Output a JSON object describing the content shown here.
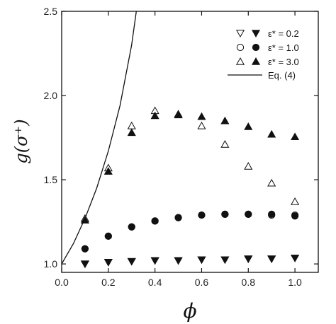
{
  "chart_data": {
    "type": "scatter",
    "xlabel": "ϕ",
    "ylabel": "g(σ⁺)",
    "xlim": [
      0.0,
      1.1
    ],
    "ylim": [
      0.95,
      2.5
    ],
    "x_ticks": [
      "0.0",
      "0.2",
      "0.4",
      "0.6",
      "0.8",
      "1.0"
    ],
    "y_ticks": [
      "1.0",
      "1.5",
      "2.0",
      "2.5"
    ],
    "grid": false,
    "legend_position": "top-right",
    "series": [
      {
        "name": "ε* = 0.2",
        "marker": "triangle-down",
        "x": [
          0.1,
          0.2,
          0.3,
          0.4,
          0.5,
          0.6,
          0.7,
          0.8,
          0.9,
          1.0
        ],
        "open": [
          1.0,
          1.01,
          1.015,
          1.02,
          1.02,
          1.025,
          1.025,
          1.03,
          1.03,
          1.035
        ],
        "filled": [
          1.0,
          1.01,
          1.015,
          1.02,
          1.02,
          1.025,
          1.025,
          1.03,
          1.03,
          1.035
        ]
      },
      {
        "name": "ε* = 1.0",
        "marker": "circle",
        "x": [
          0.1,
          0.2,
          0.3,
          0.4,
          0.5,
          0.6,
          0.7,
          0.8,
          0.9,
          1.0
        ],
        "open": [
          1.09,
          1.165,
          1.22,
          1.255,
          1.275,
          1.29,
          1.295,
          1.295,
          1.29,
          1.29
        ],
        "filled": [
          1.09,
          1.165,
          1.22,
          1.255,
          1.275,
          1.29,
          1.295,
          1.295,
          1.295,
          1.285
        ]
      },
      {
        "name": "ε* = 3.0",
        "marker": "triangle-up",
        "x": [
          0.1,
          0.2,
          0.3,
          0.4,
          0.5,
          0.6,
          0.7,
          0.8,
          0.9,
          1.0
        ],
        "open": [
          1.27,
          1.57,
          1.82,
          1.91,
          1.89,
          1.82,
          1.71,
          1.58,
          1.48,
          1.37
        ],
        "filled": [
          1.26,
          1.55,
          1.78,
          1.88,
          1.885,
          1.875,
          1.85,
          1.815,
          1.77,
          1.755
        ]
      },
      {
        "name": "Eq. (4)",
        "style": "line",
        "x": [
          0.0,
          0.05,
          0.1,
          0.15,
          0.2,
          0.25,
          0.3,
          0.32
        ],
        "y": [
          1.0,
          1.12,
          1.27,
          1.45,
          1.67,
          1.94,
          2.3,
          2.5
        ]
      }
    ]
  }
}
